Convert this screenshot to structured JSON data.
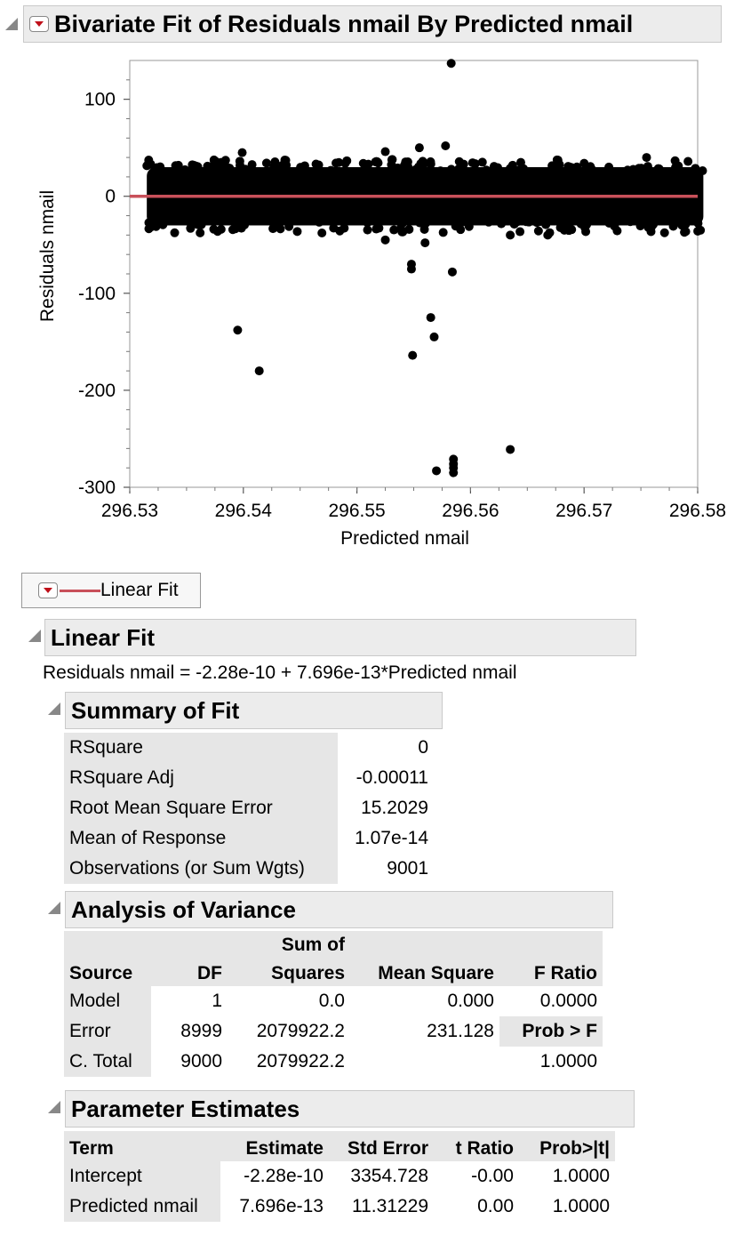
{
  "report_title": "Bivariate Fit of Residuals nmail By Predicted nmail",
  "colors": {
    "fit_line": "#c8505a",
    "points": "#000000",
    "header_bg": "#ececec",
    "label_bg": "#e6e6e6"
  },
  "chart_data": {
    "type": "scatter",
    "xlabel": "Predicted nmail",
    "ylabel": "Residuals nmail",
    "xlim": [
      296.53,
      296.58
    ],
    "ylim": [
      -300,
      140
    ],
    "x_ticks": [
      "296.53",
      "296.54",
      "296.55",
      "296.56",
      "296.57",
      "296.58"
    ],
    "y_ticks": [
      "100",
      "0",
      "-100",
      "-200",
      "-300"
    ],
    "dense_band": {
      "x_range": [
        296.5315,
        296.5805
      ],
      "y_range": [
        -30,
        30
      ]
    },
    "fit_line": {
      "intercept": 0,
      "slope": 0
    },
    "outliers": [
      {
        "x": 296.5583,
        "y": 137
      },
      {
        "x": 296.5399,
        "y": 45
      },
      {
        "x": 296.5525,
        "y": 46
      },
      {
        "x": 296.5555,
        "y": 50
      },
      {
        "x": 296.5578,
        "y": 52
      },
      {
        "x": 296.5525,
        "y": -45
      },
      {
        "x": 296.556,
        "y": -48
      },
      {
        "x": 296.5548,
        "y": -70
      },
      {
        "x": 296.5548,
        "y": -75
      },
      {
        "x": 296.5584,
        "y": -78
      },
      {
        "x": 296.5565,
        "y": -125
      },
      {
        "x": 296.5568,
        "y": -145
      },
      {
        "x": 296.5395,
        "y": -138
      },
      {
        "x": 296.5414,
        "y": -180
      },
      {
        "x": 296.5549,
        "y": -164
      },
      {
        "x": 296.5635,
        "y": -261
      },
      {
        "x": 296.5585,
        "y": -271
      },
      {
        "x": 296.5585,
        "y": -276
      },
      {
        "x": 296.5585,
        "y": -280
      },
      {
        "x": 296.5585,
        "y": -285
      },
      {
        "x": 296.557,
        "y": -283
      },
      {
        "x": 296.5635,
        "y": -40
      },
      {
        "x": 296.5668,
        "y": -40
      },
      {
        "x": 296.5755,
        "y": 40
      }
    ]
  },
  "legend": {
    "label": "Linear Fit"
  },
  "linear_fit": {
    "title": "Linear Fit",
    "equation": "Residuals nmail = -2.28e-10 + 7.696e-13*Predicted nmail"
  },
  "summary_of_fit": {
    "title": "Summary of Fit",
    "rows": [
      {
        "label": "RSquare",
        "value": "0"
      },
      {
        "label": "RSquare Adj",
        "value": "-0.00011"
      },
      {
        "label": "Root Mean Square Error",
        "value": "15.2029"
      },
      {
        "label": "Mean of Response",
        "value": "1.07e-14"
      },
      {
        "label": "Observations (or Sum Wgts)",
        "value": "9001"
      }
    ]
  },
  "anova": {
    "title": "Analysis of Variance",
    "headers": {
      "source": "Source",
      "df": "DF",
      "ss_top": "Sum of",
      "ss_bottom": "Squares",
      "ms": "Mean Square",
      "f": "F Ratio"
    },
    "rows": [
      {
        "source": "Model",
        "df": "1",
        "ss": "0.0",
        "ms": "0.000",
        "f": "0.0000"
      },
      {
        "source": "Error",
        "df": "8999",
        "ss": "2079922.2",
        "ms": "231.128",
        "f": "Prob > F"
      },
      {
        "source": "C. Total",
        "df": "9000",
        "ss": "2079922.2",
        "ms": "",
        "f": "1.0000"
      }
    ]
  },
  "parameter_estimates": {
    "title": "Parameter Estimates",
    "headers": {
      "term": "Term",
      "estimate": "Estimate",
      "std_error": "Std Error",
      "t_ratio": "t Ratio",
      "prob": "Prob>|t|"
    },
    "rows": [
      {
        "term": "Intercept",
        "estimate": "-2.28e-10",
        "std_error": "3354.728",
        "t_ratio": "-0.00",
        "prob": "1.0000"
      },
      {
        "term": "Predicted nmail",
        "estimate": "7.696e-13",
        "std_error": "11.31229",
        "t_ratio": "0.00",
        "prob": "1.0000"
      }
    ]
  }
}
